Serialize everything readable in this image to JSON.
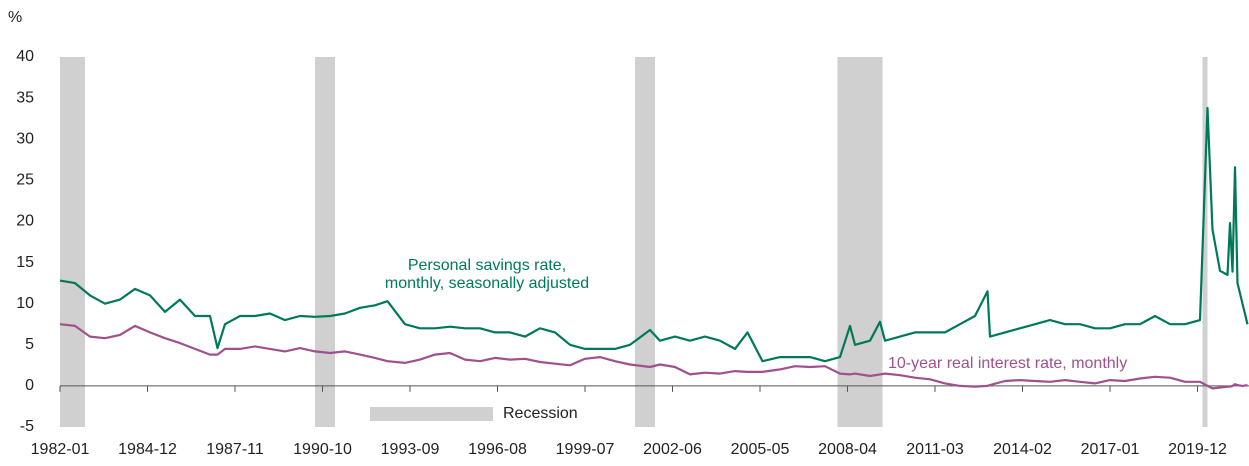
{
  "chart_data": {
    "type": "line",
    "y_unit_label": "%",
    "xlim": [
      "1982-01",
      "2021-09"
    ],
    "xticks": [
      "1982-01",
      "1984-12",
      "1987-11",
      "1990-10",
      "1993-09",
      "1996-08",
      "1999-07",
      "2002-06",
      "2005-05",
      "2008-04",
      "2011-03",
      "2014-02",
      "2017-01",
      "2019-12"
    ],
    "ylim": [
      -5,
      40
    ],
    "yticks": [
      -5,
      0,
      5,
      10,
      15,
      20,
      25,
      30,
      35,
      40
    ],
    "recessions": {
      "name": "Recession",
      "color": "#d0d0d0",
      "periods": [
        [
          "1981-07",
          "1982-11"
        ],
        [
          "1990-07",
          "1991-03"
        ],
        [
          "2001-03",
          "2001-11"
        ],
        [
          "2007-12",
          "2009-06"
        ],
        [
          "2020-02",
          "2020-04"
        ]
      ]
    },
    "x": [
      "1982-01",
      "1982-07",
      "1983-01",
      "1983-07",
      "1984-01",
      "1984-07",
      "1985-01",
      "1985-07",
      "1986-01",
      "1986-07",
      "1987-01",
      "1987-04",
      "1987-07",
      "1988-01",
      "1988-07",
      "1989-01",
      "1989-07",
      "1990-01",
      "1990-07",
      "1991-01",
      "1991-07",
      "1992-01",
      "1992-07",
      "1992-12",
      "1993-07",
      "1994-01",
      "1994-07",
      "1995-01",
      "1995-07",
      "1996-01",
      "1996-07",
      "1997-01",
      "1997-07",
      "1998-01",
      "1998-07",
      "1999-01",
      "1999-07",
      "2000-01",
      "2000-07",
      "2001-01",
      "2001-09",
      "2002-01",
      "2002-07",
      "2003-01",
      "2003-07",
      "2004-01",
      "2004-07",
      "2004-12",
      "2005-06",
      "2006-01",
      "2006-07",
      "2007-01",
      "2007-07",
      "2008-01",
      "2008-05",
      "2008-07",
      "2009-01",
      "2009-05",
      "2009-07",
      "2010-01",
      "2010-07",
      "2011-01",
      "2011-07",
      "2012-01",
      "2012-07",
      "2012-12",
      "2013-01",
      "2013-07",
      "2014-01",
      "2014-07",
      "2015-01",
      "2015-07",
      "2016-01",
      "2016-07",
      "2017-01",
      "2017-07",
      "2018-01",
      "2018-07",
      "2019-01",
      "2019-07",
      "2020-01",
      "2020-04",
      "2020-06",
      "2020-09",
      "2020-12",
      "2021-01",
      "2021-02",
      "2021-03",
      "2021-04",
      "2021-06",
      "2021-08"
    ],
    "series": [
      {
        "label_lines": [
          "Personal savings rate,",
          "monthly, seasonally adjusted"
        ],
        "color": "#00795a",
        "values": [
          12.8,
          12.5,
          11.0,
          10.0,
          10.5,
          11.8,
          11.0,
          9.0,
          10.5,
          8.5,
          8.5,
          4.6,
          7.5,
          8.5,
          8.5,
          8.8,
          8.0,
          8.5,
          8.4,
          8.5,
          8.8,
          9.5,
          9.8,
          10.3,
          7.5,
          7.0,
          7.0,
          7.2,
          7.0,
          7.0,
          6.5,
          6.5,
          6.0,
          7.0,
          6.5,
          5.0,
          4.5,
          4.5,
          4.5,
          5.0,
          6.8,
          5.5,
          6.0,
          5.5,
          6.0,
          5.5,
          4.5,
          6.5,
          3.0,
          3.5,
          3.5,
          3.5,
          3.0,
          3.5,
          7.3,
          5.0,
          5.5,
          7.8,
          5.5,
          6.0,
          6.5,
          6.5,
          6.5,
          7.5,
          8.5,
          11.5,
          6.0,
          6.5,
          7.0,
          7.5,
          8.0,
          7.5,
          7.5,
          7.0,
          7.0,
          7.5,
          7.5,
          8.5,
          7.5,
          7.5,
          8.0,
          33.8,
          19.0,
          14.0,
          13.5,
          19.8,
          13.9,
          26.6,
          12.5,
          10.0,
          7.5
        ]
      },
      {
        "label_lines": [
          "10-year real interest rate, monthly"
        ],
        "color": "#a0508c",
        "values": [
          7.5,
          7.3,
          6.0,
          5.8,
          6.2,
          7.3,
          6.5,
          5.8,
          5.2,
          4.5,
          3.8,
          3.8,
          4.5,
          4.5,
          4.8,
          4.5,
          4.2,
          4.6,
          4.2,
          4.0,
          4.2,
          3.8,
          3.4,
          3.0,
          2.8,
          3.2,
          3.8,
          4.0,
          3.2,
          3.0,
          3.4,
          3.2,
          3.3,
          2.9,
          2.7,
          2.5,
          3.3,
          3.5,
          3.0,
          2.6,
          2.3,
          2.6,
          2.3,
          1.4,
          1.6,
          1.5,
          1.8,
          1.7,
          1.7,
          2.0,
          2.4,
          2.3,
          2.4,
          1.5,
          1.4,
          1.5,
          1.2,
          1.4,
          1.5,
          1.3,
          1.0,
          0.8,
          0.3,
          0.0,
          -0.1,
          0.0,
          0.1,
          0.6,
          0.7,
          0.6,
          0.5,
          0.7,
          0.5,
          0.3,
          0.7,
          0.6,
          0.9,
          1.1,
          1.0,
          0.5,
          0.5,
          0.0,
          -0.3,
          -0.2,
          -0.1,
          -0.1,
          0.0,
          0.2,
          0.1,
          0.0,
          0.1
        ]
      }
    ]
  }
}
